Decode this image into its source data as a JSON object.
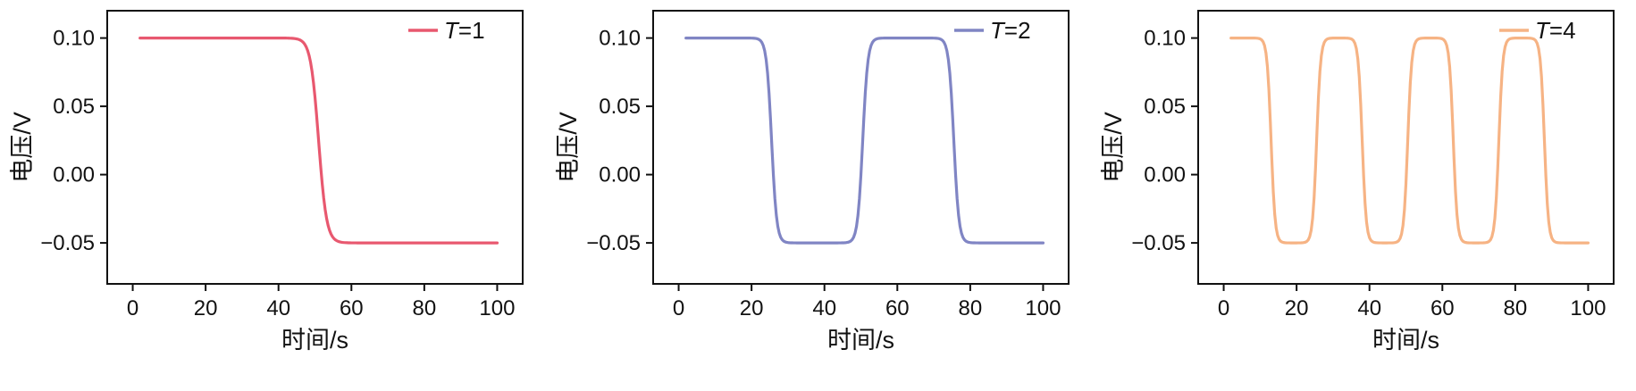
{
  "figure": {
    "background": "#ffffff",
    "axis_color": "#111111",
    "text_color": "#111111"
  },
  "chart_data": [
    {
      "type": "line",
      "title": "",
      "xlabel": "时间/s",
      "ylabel": "电压/V",
      "xlim": [
        -7,
        107
      ],
      "ylim": [
        -0.08,
        0.12
      ],
      "xticks": [
        0,
        20,
        40,
        60,
        80,
        100
      ],
      "yticks": [
        -0.05,
        0.0,
        0.05,
        0.1
      ],
      "grid": false,
      "legend": {
        "var": "T",
        "rest": "=1",
        "position": "top-right"
      },
      "series": [
        {
          "name": "T=1",
          "color": "#e8586f",
          "waveform": "square",
          "high": 0.1,
          "low": -0.05,
          "start_level": 0.1,
          "t_start": 2,
          "t_end": 100,
          "transition_centers": [
            51
          ],
          "transition_sharpness": 2.2
        }
      ]
    },
    {
      "type": "line",
      "title": "",
      "xlabel": "时间/s",
      "ylabel": "电压/V",
      "xlim": [
        -7,
        107
      ],
      "ylim": [
        -0.08,
        0.12
      ],
      "xticks": [
        0,
        20,
        40,
        60,
        80,
        100
      ],
      "yticks": [
        -0.05,
        0.0,
        0.05,
        0.1
      ],
      "grid": false,
      "legend": {
        "var": "T",
        "rest": "=2",
        "position": "top-right"
      },
      "series": [
        {
          "name": "T=2",
          "color": "#8085c4",
          "waveform": "square",
          "high": 0.1,
          "low": -0.05,
          "start_level": 0.1,
          "t_start": 2,
          "t_end": 100,
          "transition_centers": [
            25.5,
            50.5,
            75.5
          ],
          "transition_sharpness": 1.4
        }
      ]
    },
    {
      "type": "line",
      "title": "",
      "xlabel": "时间/s",
      "ylabel": "电压/V",
      "xlim": [
        -7,
        107
      ],
      "ylim": [
        -0.08,
        0.12
      ],
      "xticks": [
        0,
        20,
        40,
        60,
        80,
        100
      ],
      "yticks": [
        -0.05,
        0.0,
        0.05,
        0.1
      ],
      "grid": false,
      "legend": {
        "var": "T",
        "rest": "=4",
        "position": "top-right"
      },
      "series": [
        {
          "name": "T=4",
          "color": "#f6b384",
          "waveform": "square",
          "high": 0.1,
          "low": -0.05,
          "start_level": 0.1,
          "t_start": 2,
          "t_end": 100,
          "transition_centers": [
            13,
            25.5,
            38,
            50.5,
            63,
            75.5,
            88
          ],
          "transition_sharpness": 1.1
        }
      ]
    }
  ]
}
